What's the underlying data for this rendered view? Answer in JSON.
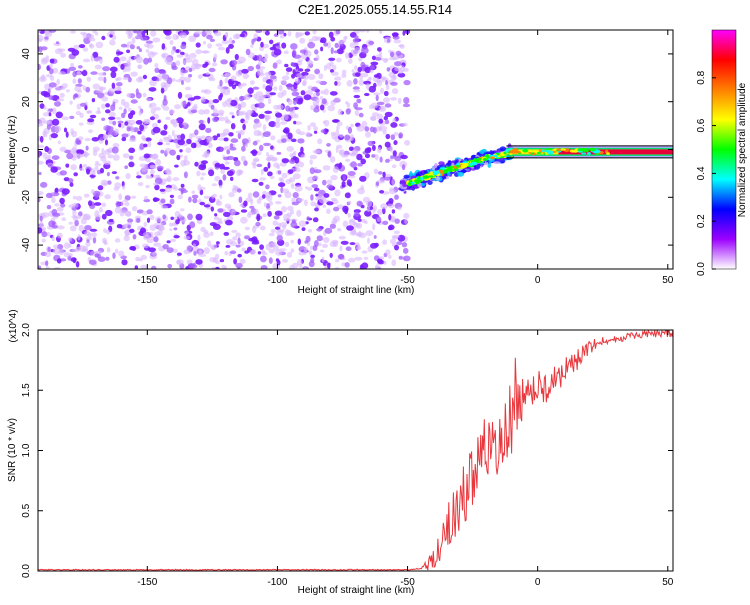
{
  "title": "C2E1.2025.055.14.55.R14",
  "chart_data": [
    {
      "type": "heatmap",
      "xlabel": "Height of straight line (km)",
      "ylabel": "Frequency (Hz)",
      "xlim": [
        -192,
        52
      ],
      "ylim": [
        -50,
        50
      ],
      "xticks": [
        -150,
        -100,
        -50,
        0,
        50
      ],
      "yticks": [
        -40,
        -20,
        0,
        20,
        40
      ],
      "colorbar": {
        "label": "Normalized spectral amplitude",
        "range": [
          0,
          1
        ],
        "ticks": [
          "0.0",
          "0.2",
          "0.4",
          "0.6",
          "0.8"
        ],
        "colors": [
          "#ffffff",
          "#9b00ff",
          "#0000ff",
          "#00ffff",
          "#00ff00",
          "#ffff00",
          "#ff7f00",
          "#ff0000",
          "#ff00ff"
        ]
      },
      "noise_region": {
        "x": [
          -192,
          -50
        ],
        "y": [
          -50,
          50
        ]
      },
      "signal_trace": {
        "x": [
          -50,
          -45,
          -40,
          -35,
          -30,
          -25,
          -20,
          -15,
          -10,
          -5,
          0,
          10,
          20,
          30,
          40,
          50
        ],
        "y": [
          -14,
          -12.5,
          -10.5,
          -8.5,
          -7,
          -5.5,
          -3.5,
          -2.5,
          -1.5,
          -1,
          -1,
          -1,
          -1,
          -1,
          -1,
          -1
        ]
      }
    },
    {
      "type": "line",
      "xlabel": "Height of straight line (km)",
      "ylabel": "SNR (10 * v/v)",
      "y_multiplier": "(x10^4)",
      "xlim": [
        -192,
        52
      ],
      "ylim": [
        0,
        2.0
      ],
      "xticks": [
        -150,
        -100,
        -50,
        0,
        50
      ],
      "yticks": [
        "0.0",
        "0.5",
        "1.0",
        "1.5",
        "2.0"
      ],
      "color": "#e8383d",
      "series": [
        {
          "x": [
            -192,
            -100,
            -50,
            -45,
            -42,
            -40,
            -37,
            -35,
            -32,
            -30,
            -28,
            -25,
            -22,
            -20,
            -17,
            -15,
            -12,
            -10,
            -8,
            -5,
            -2,
            0,
            5,
            10,
            15,
            20,
            25,
            30,
            35,
            40,
            45,
            50,
            52
          ],
          "y": [
            0.01,
            0.01,
            0.01,
            0.02,
            0.05,
            0.1,
            0.2,
            0.35,
            0.5,
            0.55,
            0.65,
            0.8,
            0.95,
            1.05,
            1.0,
            0.95,
            1.05,
            1.2,
            1.3,
            1.4,
            1.45,
            1.5,
            1.55,
            1.65,
            1.75,
            1.85,
            1.9,
            1.92,
            1.95,
            1.96,
            1.97,
            1.97,
            1.97
          ]
        }
      ]
    }
  ]
}
